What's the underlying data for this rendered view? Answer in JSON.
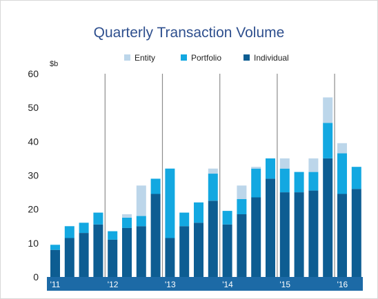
{
  "colors": {
    "entity": "#bcd6ea",
    "portfolio": "#13a8e1",
    "individual": "#0d5d92",
    "axis_band": "#1c6aa6",
    "divider": "#8c8c8c",
    "title": "#2e4f8e"
  },
  "chart_data": {
    "type": "bar",
    "stacked": true,
    "title": "Quarterly Transaction Volume",
    "ylabel": "$b",
    "ylim": [
      0,
      60
    ],
    "yticks": [
      0,
      10,
      20,
      30,
      40,
      50,
      60
    ],
    "legend_position": "top",
    "grid": false,
    "year_labels": [
      "'11",
      "'12",
      "'13",
      "'14",
      "'15",
      "'16"
    ],
    "categories": [
      "2011 Q1",
      "2011 Q2",
      "2011 Q3",
      "2011 Q4",
      "2012 Q1",
      "2012 Q2",
      "2012 Q3",
      "2012 Q4",
      "2013 Q1",
      "2013 Q2",
      "2013 Q3",
      "2013 Q4",
      "2014 Q1",
      "2014 Q2",
      "2014 Q3",
      "2014 Q4",
      "2015 Q1",
      "2015 Q2",
      "2015 Q3",
      "2015 Q4",
      "2016 Q1",
      "2016 Q2"
    ],
    "series": [
      {
        "name": "Individual",
        "color_key": "individual",
        "values": [
          8,
          11.5,
          13,
          15.5,
          11,
          14.5,
          15,
          24.5,
          11.5,
          15,
          16,
          22.5,
          15.5,
          18.5,
          23.5,
          29,
          25,
          25,
          25.5,
          35,
          24.5,
          26
        ]
      },
      {
        "name": "Portfolio",
        "color_key": "portfolio",
        "values": [
          1.5,
          3.5,
          3,
          3.5,
          2.5,
          3,
          3,
          4.5,
          20.5,
          4,
          6,
          8,
          4,
          4.5,
          8.5,
          6,
          7,
          6,
          5.5,
          10.5,
          12,
          6.5
        ]
      },
      {
        "name": "Entity",
        "color_key": "entity",
        "values": [
          0,
          0,
          0,
          0,
          0,
          1,
          9,
          0,
          0,
          0,
          0,
          1.5,
          0,
          4,
          0.5,
          0,
          3,
          0,
          4,
          7.5,
          3,
          0
        ]
      }
    ]
  }
}
